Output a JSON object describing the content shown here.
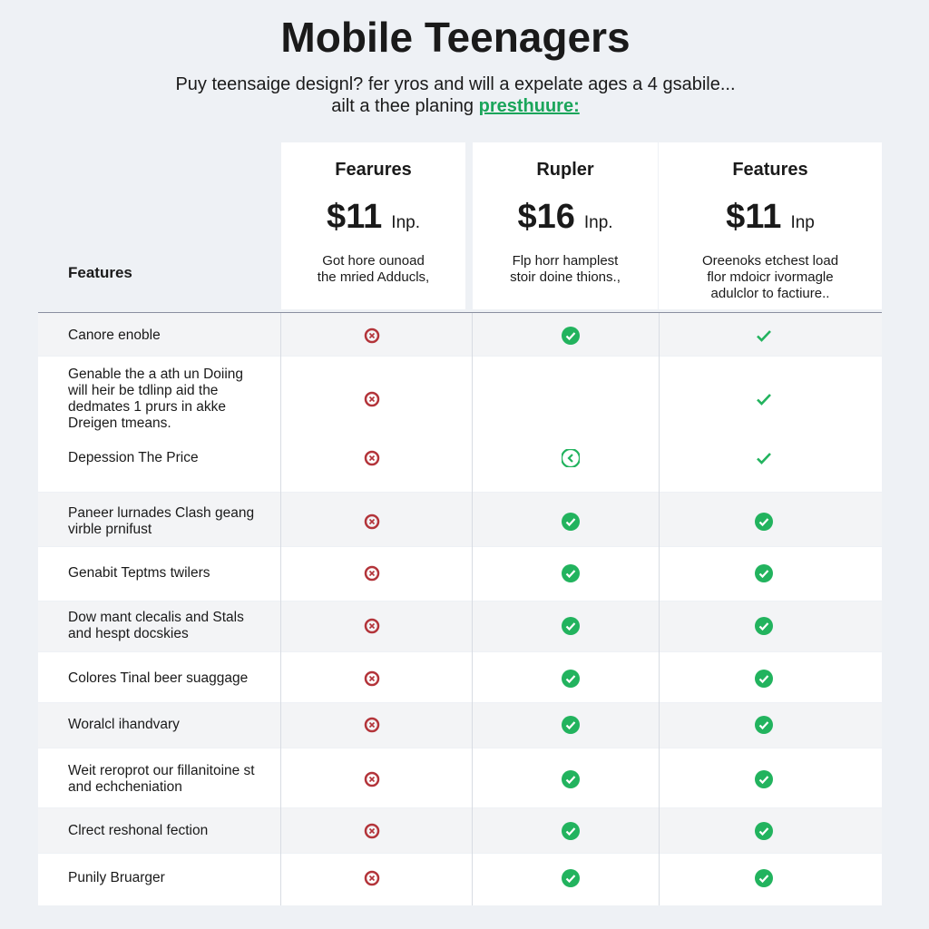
{
  "header": {
    "title": "Mobile Teenagers",
    "subtitle": "Puy teensaige designl? fer yros and will a expelate ages a 4 gsabile...",
    "subtitle_line2": "ailt a thee planing",
    "subtitle_link": "presthuure:"
  },
  "table": {
    "label_header": "Features",
    "plans": [
      {
        "name": "Fearures",
        "price": "$11",
        "unit": "Inp.",
        "description": [
          "Got hore ounoad",
          "the mried Adducls,"
        ]
      },
      {
        "name": "Rupler",
        "price": "$16",
        "unit": "Inp.",
        "description": [
          "Flp horr hamplest",
          "stoir doine thions.,"
        ]
      },
      {
        "name": "Features",
        "price": "$11",
        "unit": "Inp",
        "description": [
          "Oreenoks etchest load",
          "flor mdoicr ivormagle",
          "adulclor to factiure.."
        ]
      }
    ],
    "rows": [
      {
        "label": [
          "Canore enoble"
        ]
      },
      {
        "label": [
          "Genable the a ath un Doiing",
          "will heir be tdlinp aid the",
          "dedmates 1 prurs in akke",
          "Dreigen tmeans."
        ]
      },
      {
        "label": [
          "Depession The Price"
        ]
      },
      {
        "label": [
          "Paneer lurnades Clash geang",
          "virble prnifust"
        ]
      },
      {
        "label": [
          "Genabit Teptms twilers"
        ]
      },
      {
        "label": [
          "Dow mant clecalis and Stals",
          "and hespt docskies"
        ]
      },
      {
        "label": [
          "Colores Tinal beer suaggage"
        ]
      },
      {
        "label": [
          "Woralcl ihandvary"
        ]
      },
      {
        "label": [
          "Weit reroprot our fillanitoine st",
          "and echcheniation"
        ]
      },
      {
        "label": [
          "Clrect reshonal fection"
        ]
      },
      {
        "label": [
          "Punily Bruarger"
        ]
      }
    ]
  }
}
